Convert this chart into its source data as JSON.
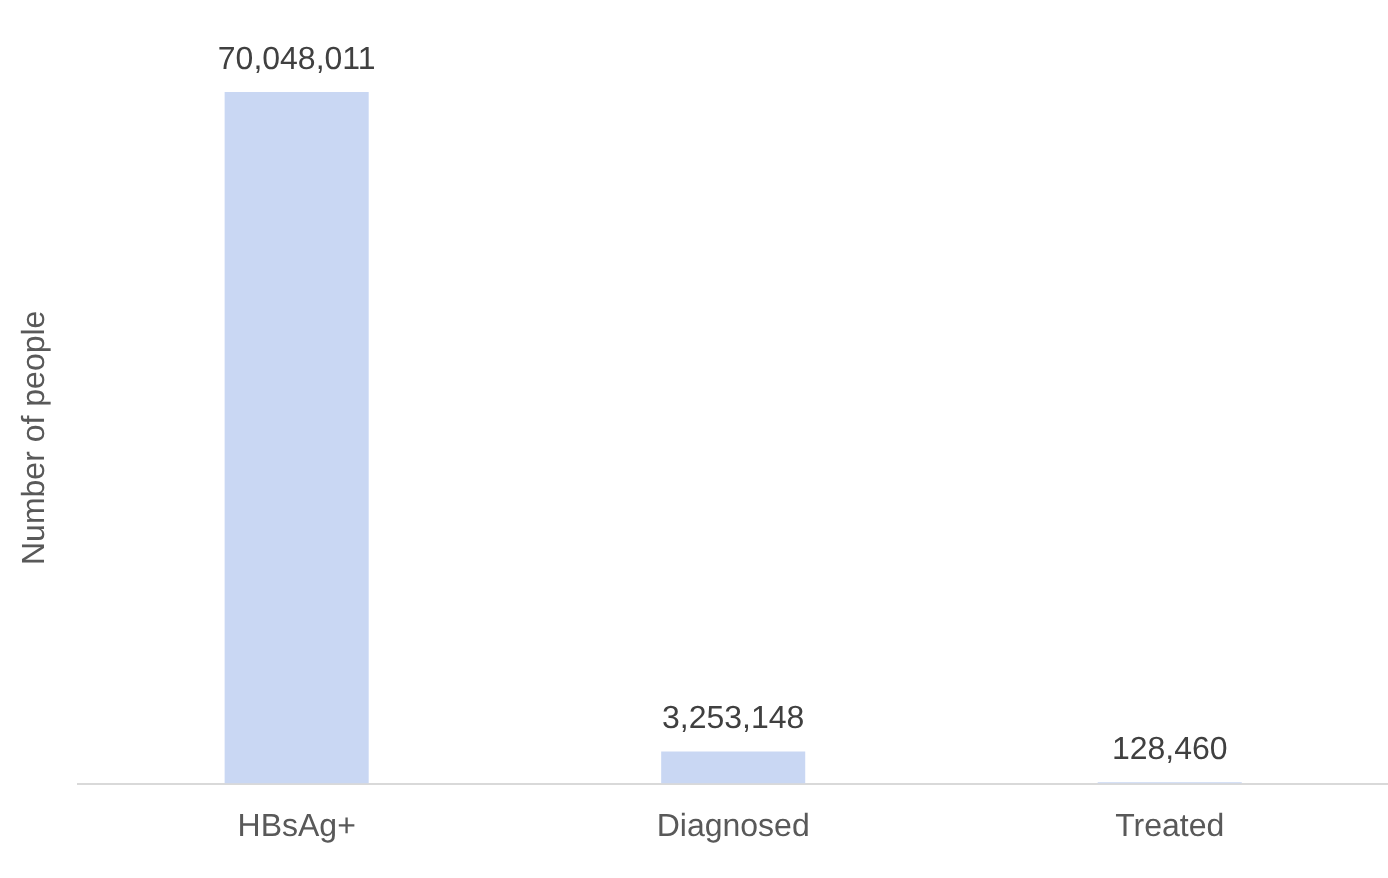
{
  "chart_data": {
    "type": "bar",
    "ylabel": "Number of people",
    "categories": [
      "HBsAg+",
      "Diagnosed",
      "Treated"
    ],
    "values": [
      70048011,
      3253148,
      128460
    ],
    "value_labels": [
      "70,048,011",
      "3,253,148",
      "128,460"
    ],
    "color": "#c9d7f3",
    "grid": false,
    "legend": false,
    "tick_labels": "x"
  }
}
